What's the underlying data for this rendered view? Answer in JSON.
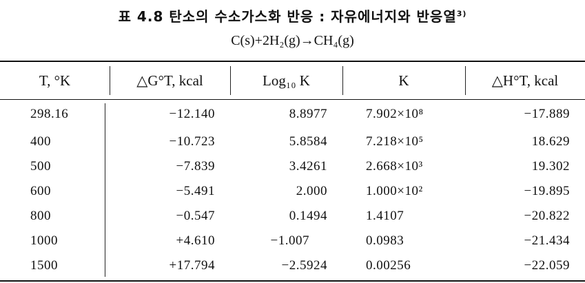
{
  "header": {
    "title": "표 4.8 탄소의 수소가스화 반응 : 자유에너지와 반응열",
    "title_ref": "3)",
    "equation": "C(s)+2H₂(g)→CH₄(g)"
  },
  "table": {
    "columns": [
      "T, °K",
      "△G°T, kcal",
      "Log₁₀ K",
      "K",
      "△H°T, kcal"
    ],
    "rows": [
      [
        "298.16",
        "−12.140",
        "8.8977",
        "7.902×10⁸",
        "−17.889"
      ],
      [
        "400",
        "−10.723",
        "5.8584",
        "7.218×10⁵",
        "18.629"
      ],
      [
        "500",
        "−7.839",
        "3.4261",
        "2.668×10³",
        "19.302"
      ],
      [
        "600",
        "−5.491",
        "2.000",
        "1.000×10²",
        "−19.895"
      ],
      [
        "800",
        "−0.547",
        "0.1494",
        "1.4107",
        "−20.822"
      ],
      [
        "1000",
        "+4.610",
        "−1.007",
        "0.0983",
        "−21.434"
      ],
      [
        "1500",
        "+17.794",
        "−2.5924",
        "0.00256",
        "−22.059"
      ]
    ]
  }
}
